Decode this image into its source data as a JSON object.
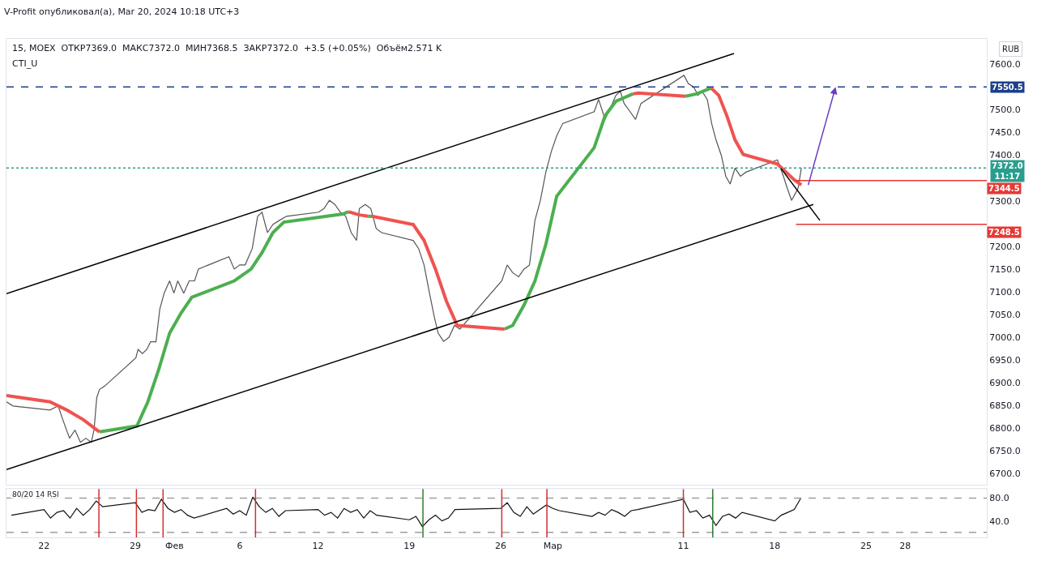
{
  "chart_data": [
    {
      "type": "line",
      "title": "15, MOEX  ОТКР7369.0  МАКС7372.0  МИН7368.5  ЗАКР7372.0  +3.5 (+0.05%)  Объём2.571 K",
      "annotations": [
        "V-Profit опубликовал(а), Mar 20, 2024 10:18 UTC+3",
        "CTI_U",
        "RUB",
        {
          "text": "7344.5",
          "x": "2024-04-03T06:00",
          "y": 7344.5
        },
        {
          "text": "7248.5",
          "x": "2024-04-03T06:00",
          "y": 7248.5
        }
      ],
      "xlim": [
        "2024-01-19T03:00",
        "2024-04-03T06:00"
      ],
      "ylim": [
        6675,
        7656
      ],
      "tick_labels": "y",
      "marker": "none",
      "yticks": [
        {
          "value": 6700,
          "label": "6700.0"
        },
        {
          "value": 6750,
          "label": "6750.0"
        },
        {
          "value": 6800,
          "label": "6800.0"
        },
        {
          "value": 6850,
          "label": "6850.0"
        },
        {
          "value": 6900,
          "label": "6900.0"
        },
        {
          "value": 6950,
          "label": "6950.0"
        },
        {
          "value": 7000,
          "label": "7000.0"
        },
        {
          "value": 7050,
          "label": "7050.0"
        },
        {
          "value": 7100,
          "label": "7100.0"
        },
        {
          "value": 7150,
          "label": "7150.0"
        },
        {
          "value": 7200,
          "label": "7200.0"
        },
        {
          "value": 7300,
          "label": "7300.0"
        },
        {
          "value": 7400,
          "label": "7400.0"
        },
        {
          "value": 7450,
          "label": "7450.0"
        },
        {
          "value": 7500,
          "label": "7500.0"
        },
        {
          "value": 7600,
          "label": "7600.0"
        }
      ],
      "ref_lines": [
        {
          "axis": "y",
          "value": 7550.5,
          "label": "7550.5",
          "color": "#1b3f8b",
          "line_style": "dashed"
        },
        {
          "axis": "y",
          "value": 7372.0,
          "label": "7372.0\n11:17",
          "color": "#2a9d8f",
          "line_style": "dotted"
        }
      ],
      "series": [
        {
          "color": "#555555",
          "line_style": "solid",
          "x": [
            "2024-01-19T03:00",
            "2024-01-19T15:00",
            "2024-01-22T11:00",
            "2024-01-23T02:00",
            "2024-01-23T12:00",
            "2024-01-23T23:00",
            "2024-01-24T09:00",
            "2024-01-24T19:00",
            "2024-01-25T05:00",
            "2024-01-25T15:00",
            "2024-01-25T20:00",
            "2024-01-26T01:00",
            "2024-01-26T06:00",
            "2024-01-26T16:00",
            "2024-01-29T01:00",
            "2024-01-29T05:00",
            "2024-01-29T13:00",
            "2024-01-29T21:00",
            "2024-01-30T04:00",
            "2024-01-30T14:00",
            "2024-01-30T21:00",
            "2024-01-31T05:00",
            "2024-01-31T15:00",
            "2024-01-31T23:00",
            "2024-02-01T06:00",
            "2024-02-01T17:00",
            "2024-02-02T03:00",
            "2024-02-02T13:00",
            "2024-02-02T20:00",
            "2024-02-05T04:00",
            "2024-02-05T14:00",
            "2024-02-06T00:00",
            "2024-02-06T10:00",
            "2024-02-06T23:00",
            "2024-02-07T09:00",
            "2024-02-07T17:00",
            "2024-02-08T03:00",
            "2024-02-08T13:00",
            "2024-02-09T01:00",
            "2024-02-09T14:00",
            "2024-02-12T01:00",
            "2024-02-12T11:00",
            "2024-02-12T21:00",
            "2024-02-13T07:00",
            "2024-02-13T17:00",
            "2024-02-14T03:00",
            "2024-02-14T13:00",
            "2024-02-14T23:00",
            "2024-02-15T04:00",
            "2024-02-15T15:00",
            "2024-02-16T01:00",
            "2024-02-16T11:00",
            "2024-02-16T21:00",
            "2024-02-19T07:00",
            "2024-02-19T17:00",
            "2024-02-20T03:00",
            "2024-02-20T13:00",
            "2024-02-20T22:00",
            "2024-02-21T05:00",
            "2024-02-21T15:00",
            "2024-02-22T01:00",
            "2024-02-22T11:00",
            "2024-02-22T21:00",
            "2024-02-26T02:00",
            "2024-02-26T12:00",
            "2024-02-26T22:00",
            "2024-02-27T09:00",
            "2024-02-27T19:00",
            "2024-02-28T05:00",
            "2024-02-28T15:00",
            "2024-02-29T01:00",
            "2024-02-29T11:00",
            "2024-02-29T21:00",
            "2024-03-01T07:00",
            "2024-03-01T18:00",
            "2024-03-04T04:00",
            "2024-03-04T12:00",
            "2024-03-05T00:00",
            "2024-03-05T10:00",
            "2024-03-05T20:00",
            "2024-03-06T04:00",
            "2024-03-06T11:00",
            "2024-03-06T22:00",
            "2024-03-07T08:00",
            "2024-03-07T18:00",
            "2024-03-11T01:00",
            "2024-03-11T09:00",
            "2024-03-11T19:00",
            "2024-03-12T03:00",
            "2024-03-12T10:00",
            "2024-03-12T20:00",
            "2024-03-13T04:00",
            "2024-03-13T12:00",
            "2024-03-13T22:00",
            "2024-03-14T06:00",
            "2024-03-14T14:00",
            "2024-03-14T23:00",
            "2024-03-15T09:00",
            "2024-03-15T19:00",
            "2024-03-18T05:00",
            "2024-03-18T16:00",
            "2024-03-18T23:00",
            "2024-03-19T07:00",
            "2024-03-19T13:00",
            "2024-03-19T19:00",
            "2024-03-20T01:00"
          ],
          "values": [
            6858,
            6849,
            6840,
            6849,
            6814,
            6778,
            6796,
            6769,
            6778,
            6769,
            6796,
            6867,
            6885,
            6893,
            6955,
            6973,
            6964,
            6973,
            6990,
            6990,
            7062,
            7097,
            7124,
            7097,
            7124,
            7097,
            7124,
            7124,
            7150,
            7177,
            7150,
            7159,
            7159,
            7195,
            7266,
            7275,
            7230,
            7248,
            7257,
            7266,
            7275,
            7283,
            7301,
            7292,
            7275,
            7266,
            7230,
            7213,
            7283,
            7292,
            7283,
            7239,
            7230,
            7213,
            7195,
            7159,
            7097,
            7044,
            7009,
            6991,
            7000,
            7026,
            7018,
            7124,
            7159,
            7142,
            7133,
            7150,
            7159,
            7257,
            7301,
            7363,
            7408,
            7443,
            7470,
            7496,
            7523,
            7479,
            7505,
            7532,
            7541,
            7514,
            7496,
            7479,
            7514,
            7576,
            7558,
            7550,
            7532,
            7541,
            7523,
            7470,
            7434,
            7399,
            7354,
            7337,
            7372,
            7354,
            7363,
            7390,
            7354,
            7328,
            7301,
            7314,
            7328,
            7372
          ]
        },
        {
          "color": "#4caf50",
          "line_style": "solid",
          "x": [
            "2024-01-26T06:00",
            "2024-01-29T03:00",
            "2024-01-29T23:00",
            "2024-01-30T19:00",
            "2024-01-31T15:00",
            "2024-02-01T12:00",
            "2024-02-02T08:00",
            "2024-02-05T14:00",
            "2024-02-06T21:00",
            "2024-02-07T17:00",
            "2024-02-08T13:00",
            "2024-02-09T09:00",
            "2024-02-12T16:00",
            "2024-02-13T22:00",
            "2024-02-14T08:00",
            null,
            "2024-02-15T20:00",
            "2024-02-16T03:00",
            null,
            "2024-02-26T07:00",
            "2024-02-26T22:00",
            "2024-02-27T19:00",
            "2024-02-28T15:00",
            "2024-02-29T11:00",
            "2024-03-01T07:00",
            "2024-03-04T04:00",
            "2024-03-05T00:00",
            "2024-03-05T20:00",
            "2024-03-07T03:00",
            null,
            "2024-03-11T04:00",
            "2024-03-12T00:00",
            "2024-03-13T03:00"
          ],
          "values": [
            6792,
            6805,
            6858,
            6929,
            7009,
            7053,
            7088,
            7124,
            7150,
            7186,
            7230,
            7253,
            7266,
            7271,
            7276,
            null,
            7266,
            7266,
            null,
            7018,
            7026,
            7071,
            7124,
            7204,
            7310,
            7417,
            7487,
            7519,
            7535,
            null,
            7530,
            7535,
            7548
          ]
        },
        {
          "color": "#ef5350",
          "line_style": "solid",
          "x": [
            "2024-01-19T03:00",
            "2024-01-22T11:00",
            "2024-01-23T18:00",
            "2024-01-25T00:00",
            "2024-01-26T06:00",
            null,
            "2024-02-14T08:00",
            "2024-02-15T04:00",
            "2024-02-15T20:00",
            null,
            "2024-02-16T03:00",
            "2024-02-19T07:00",
            "2024-02-20T03:00",
            "2024-02-21T00:00",
            "2024-02-21T20:00",
            "2024-02-22T16:00",
            "2024-02-26T07:00",
            null,
            "2024-03-07T03:00",
            "2024-03-07T13:00",
            "2024-03-11T04:00",
            null,
            "2024-03-13T03:00",
            "2024-03-13T17:00",
            "2024-03-14T08:00",
            "2024-03-14T23:00",
            "2024-03-15T14:00",
            "2024-03-18T05:00",
            "2024-03-18T21:00",
            "2024-03-19T12:00",
            "2024-03-20T01:00"
          ],
          "values": [
            6872,
            6858,
            6840,
            6819,
            6792,
            null,
            7276,
            7269,
            7266,
            null,
            7266,
            7248,
            7213,
            7150,
            7080,
            7026,
            7018,
            null,
            7535,
            7537,
            7530,
            null,
            7548,
            7532,
            7487,
            7434,
            7402,
            7381,
            7363,
            7346,
            7335
          ]
        },
        {
          "color": "#000000",
          "line_style": "solid",
          "x": [
            "2024-01-19T03:00",
            "2024-03-14T21:00"
          ],
          "values": [
            7096,
            7624
          ]
        },
        {
          "color": "#000000",
          "line_style": "solid",
          "x": [
            "2024-01-19T03:00",
            "2024-03-20T23:00"
          ],
          "values": [
            6709,
            7292
          ]
        },
        {
          "color": "#000000",
          "line_style": "solid",
          "x": [
            "2024-03-18T11:00",
            "2024-03-21T11:00"
          ],
          "values": [
            7372,
            7257
          ]
        },
        {
          "color": "#e53935",
          "line_style": "solid",
          "x": [
            "2024-03-19T15:00",
            "2024-04-03T06:00"
          ],
          "values": [
            7344.5,
            7344.5
          ]
        },
        {
          "color": "#e53935",
          "line_style": "solid",
          "x": [
            "2024-03-19T15:00",
            "2024-04-03T06:00"
          ],
          "values": [
            7248.5,
            7248.5
          ]
        }
      ]
    },
    {
      "type": "line",
      "title": "80/20 14 RSI",
      "xlim": [
        "2024-01-19T03:00",
        "2024-04-03T06:00"
      ],
      "ylim": [
        11,
        96
      ],
      "marker": "none",
      "xticks": [
        {
          "value": "2024-01-22",
          "label": "22"
        },
        {
          "value": "2024-01-29",
          "label": "29"
        },
        {
          "value": "2024-02-01",
          "label": "Фев"
        },
        {
          "value": "2024-02-06",
          "label": "6"
        },
        {
          "value": "2024-02-12",
          "label": "12"
        },
        {
          "value": "2024-02-19",
          "label": "19"
        },
        {
          "value": "2024-02-26",
          "label": "26"
        },
        {
          "value": "2024-03-01",
          "label": "Мар"
        },
        {
          "value": "2024-03-11",
          "label": "11"
        },
        {
          "value": "2024-03-18",
          "label": "18"
        },
        {
          "value": "2024-03-25",
          "label": "25"
        },
        {
          "value": "2024-03-28",
          "label": "28"
        }
      ],
      "yticks": [
        {
          "value": 80,
          "label": "80.0"
        },
        {
          "value": 40,
          "label": "40.0"
        }
      ],
      "ref_lines": [
        {
          "axis": "y",
          "value": 80,
          "color": "#9e9e9e",
          "line_style": "dashed"
        },
        {
          "axis": "y",
          "value": 20,
          "color": "#9e9e9e",
          "line_style": "dashed"
        },
        {
          "axis": "x",
          "value": "2024-01-26T05:00",
          "color": "#d32f2f",
          "line_style": "solid"
        },
        {
          "axis": "x",
          "value": "2024-01-29T02:00",
          "color": "#d32f2f",
          "line_style": "solid"
        },
        {
          "axis": "x",
          "value": "2024-01-31T03:00",
          "color": "#d32f2f",
          "line_style": "solid"
        },
        {
          "axis": "x",
          "value": "2024-02-07T05:00",
          "color": "#d32f2f",
          "line_style": "solid"
        },
        {
          "axis": "x",
          "value": "2024-02-20T01:00",
          "color": "#2e7d32",
          "line_style": "solid"
        },
        {
          "axis": "x",
          "value": "2024-02-26T02:00",
          "color": "#d32f2f",
          "line_style": "solid"
        },
        {
          "axis": "x",
          "value": "2024-02-29T13:00",
          "color": "#d32f2f",
          "line_style": "solid"
        },
        {
          "axis": "x",
          "value": "2024-03-11T00:00",
          "color": "#d32f2f",
          "line_style": "solid"
        },
        {
          "axis": "x",
          "value": "2024-03-13T06:00",
          "color": "#2e7d32",
          "line_style": "solid"
        }
      ],
      "series": [
        {
          "color": "#111111",
          "line_style": "solid",
          "x": [
            "2024-01-19T12:00",
            "2024-01-22T00:00",
            "2024-01-22T12:00",
            "2024-01-23T00:00",
            "2024-01-23T12:00",
            "2024-01-24T00:00",
            "2024-01-24T12:00",
            "2024-01-25T00:00",
            "2024-01-25T12:00",
            "2024-01-26T00:00",
            "2024-01-26T12:00",
            "2024-01-29T00:00",
            "2024-01-29T12:00",
            "2024-01-30T00:00",
            "2024-01-30T12:00",
            "2024-01-31T00:00",
            "2024-01-31T12:00",
            "2024-02-01T00:00",
            "2024-02-01T12:00",
            "2024-02-02T00:00",
            "2024-02-02T12:00",
            "2024-02-05T00:00",
            "2024-02-05T12:00",
            "2024-02-06T00:00",
            "2024-02-06T12:00",
            "2024-02-07T00:00",
            "2024-02-07T12:00",
            "2024-02-08T00:00",
            "2024-02-08T12:00",
            "2024-02-09T00:00",
            "2024-02-09T12:00",
            "2024-02-12T00:00",
            "2024-02-12T12:00",
            "2024-02-13T00:00",
            "2024-02-13T12:00",
            "2024-02-14T00:00",
            "2024-02-14T12:00",
            "2024-02-15T00:00",
            "2024-02-15T12:00",
            "2024-02-16T00:00",
            "2024-02-16T12:00",
            "2024-02-19T00:00",
            "2024-02-19T12:00",
            "2024-02-20T00:00",
            "2024-02-20T12:00",
            "2024-02-21T00:00",
            "2024-02-21T12:00",
            "2024-02-22T00:00",
            "2024-02-22T12:00",
            "2024-02-26T00:00",
            "2024-02-26T12:00",
            "2024-02-27T00:00",
            "2024-02-27T12:00",
            "2024-02-28T00:00",
            "2024-02-28T12:00",
            "2024-02-29T00:00",
            "2024-02-29T12:00",
            "2024-03-01T00:00",
            "2024-03-01T12:00",
            "2024-03-04T00:00",
            "2024-03-04T12:00",
            "2024-03-05T00:00",
            "2024-03-05T12:00",
            "2024-03-06T00:00",
            "2024-03-06T12:00",
            "2024-03-07T00:00",
            "2024-03-07T12:00",
            "2024-03-11T00:00",
            "2024-03-11T12:00",
            "2024-03-12T00:00",
            "2024-03-12T12:00",
            "2024-03-13T00:00",
            "2024-03-13T12:00",
            "2024-03-14T00:00",
            "2024-03-14T12:00",
            "2024-03-15T00:00",
            "2024-03-15T12:00",
            "2024-03-18T00:00",
            "2024-03-18T12:00",
            "2024-03-19T00:00",
            "2024-03-19T12:00",
            "2024-03-20T00:00"
          ],
          "values": [
            50,
            60,
            45,
            55,
            58,
            45,
            62,
            50,
            60,
            75,
            65,
            72,
            55,
            60,
            58,
            78,
            62,
            55,
            60,
            50,
            45,
            62,
            52,
            58,
            50,
            82,
            65,
            55,
            62,
            48,
            58,
            60,
            50,
            55,
            45,
            62,
            55,
            60,
            45,
            58,
            50,
            42,
            48,
            30,
            42,
            50,
            40,
            45,
            60,
            62,
            72,
            55,
            48,
            65,
            52,
            60,
            68,
            62,
            58,
            48,
            55,
            50,
            60,
            55,
            48,
            58,
            60,
            78,
            55,
            58,
            45,
            50,
            32,
            48,
            52,
            45,
            55,
            40,
            50,
            55,
            60,
            80
          ]
        }
      ]
    }
  ]
}
